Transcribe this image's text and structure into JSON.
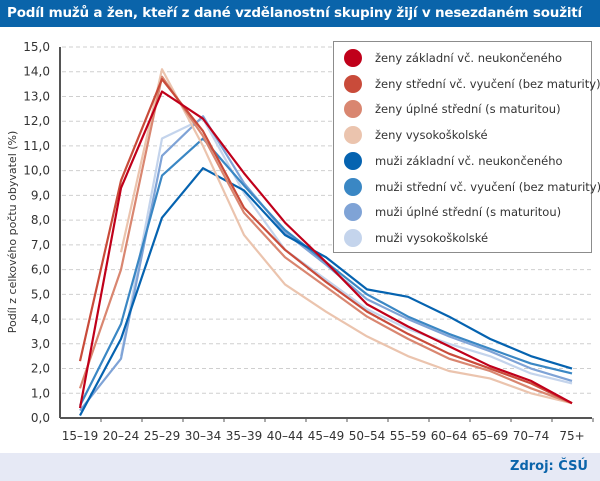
{
  "header": {
    "title": "Podíl mužů a žen, kteří z dané vzdělanostní skupiny žijí v nesezdaném soužití"
  },
  "footer": {
    "source": "Zdroj: ČSÚ"
  },
  "chart_data": {
    "type": "line",
    "title": "Podíl mužů a žen, kteří z dané vzdělanostní skupiny žijí v nesezdaném soužití",
    "xlabel": "",
    "ylabel": "Podíl z celkového počtu obyvatel (%)",
    "ylim": [
      0,
      15
    ],
    "yticks": [
      "0,0",
      "1,0",
      "2,0",
      "3,0",
      "4,0",
      "5,0",
      "6,0",
      "7,0",
      "8,0",
      "9,0",
      "10,0",
      "11,0",
      "12,0",
      "13,0",
      "14,0",
      "15,0"
    ],
    "grid": true,
    "legend_position": "top-right",
    "categories": [
      "15–19",
      "20–24",
      "25–29",
      "30–34",
      "35–39",
      "40–44",
      "45–49",
      "50–54",
      "55–59",
      "60–64",
      "65–69",
      "70–74",
      "75+"
    ],
    "series": [
      {
        "name": "ženy základní vč. neukončeného",
        "color": "#c0001a",
        "values": [
          0.4,
          9.3,
          13.2,
          12.1,
          9.9,
          7.9,
          6.3,
          4.6,
          3.7,
          2.9,
          2.1,
          1.5,
          0.6
        ]
      },
      {
        "name": "ženy střední vč. vyučení (bez maturity)",
        "color": "#c94b3a",
        "values": [
          2.3,
          9.6,
          13.7,
          11.6,
          8.5,
          6.8,
          5.5,
          4.3,
          3.4,
          2.6,
          2.0,
          1.4,
          0.6
        ]
      },
      {
        "name": "ženy úplné střední (s maturitou)",
        "color": "#d98670",
        "values": [
          1.2,
          6.0,
          13.8,
          11.4,
          8.3,
          6.5,
          5.3,
          4.1,
          3.2,
          2.4,
          1.9,
          1.2,
          0.6
        ]
      },
      {
        "name": "ženy vysokoškolské",
        "color": "#ebc4ae",
        "values": [
          null,
          6.7,
          14.1,
          11.0,
          7.4,
          5.4,
          4.3,
          3.3,
          2.5,
          1.9,
          1.6,
          1.0,
          0.6
        ]
      },
      {
        "name": "muži základní vč. neukončeného",
        "color": "#0563b0",
        "values": [
          0.1,
          3.2,
          8.1,
          10.1,
          9.2,
          7.4,
          6.5,
          5.2,
          4.9,
          4.1,
          3.2,
          2.5,
          2.0
        ]
      },
      {
        "name": "muži střední vč. vyučení (bez maturity)",
        "color": "#3a87c4",
        "values": [
          0.5,
          3.8,
          9.8,
          11.3,
          9.4,
          7.6,
          6.3,
          5.0,
          4.1,
          3.4,
          2.8,
          2.2,
          1.8
        ]
      },
      {
        "name": "muži úplné střední (s maturitou)",
        "color": "#7fa3d6",
        "values": [
          0.3,
          2.4,
          10.6,
          12.2,
          9.5,
          7.5,
          6.2,
          4.8,
          4.0,
          3.3,
          2.7,
          2.0,
          1.5
        ]
      },
      {
        "name": "muži vysokoškolské",
        "color": "#c4d4ec",
        "values": [
          null,
          2.5,
          11.3,
          12.1,
          9.1,
          6.8,
          5.6,
          4.4,
          3.6,
          3.0,
          2.5,
          1.8,
          1.4
        ]
      }
    ]
  }
}
